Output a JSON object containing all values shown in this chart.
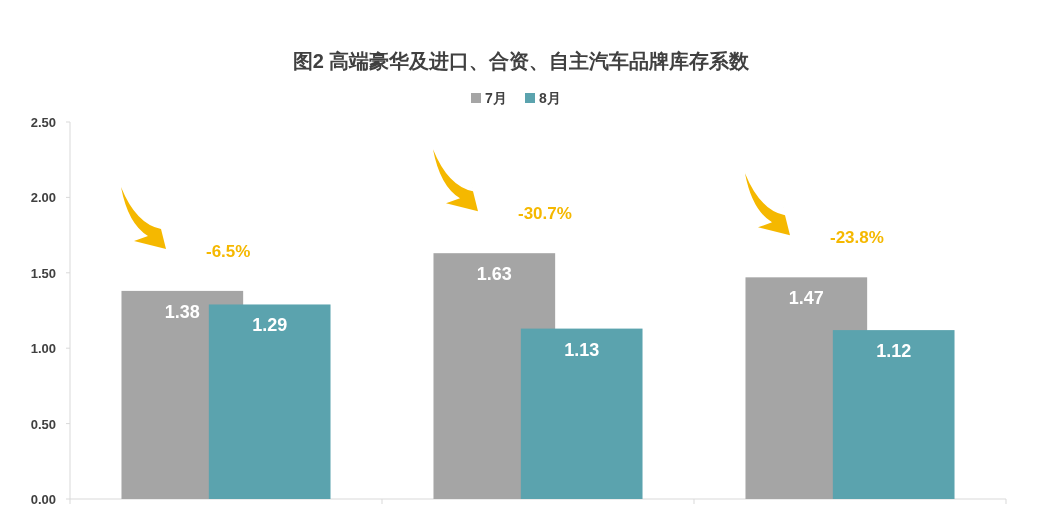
{
  "chart_data": {
    "type": "bar",
    "title": "图2  高端豪华及进口、合资、自主汽车品牌库存系数",
    "categories": [
      null,
      null,
      null
    ],
    "series": [
      {
        "name": "7月",
        "color": "#a5a5a5",
        "values": [
          1.38,
          1.63,
          1.47
        ]
      },
      {
        "name": "8月",
        "color": "#5ba3ae",
        "values": [
          1.29,
          1.13,
          1.12
        ]
      }
    ],
    "ylim": [
      0,
      2.5
    ],
    "yticks": [
      {
        "value": 0,
        "label": "0.00"
      },
      {
        "value": 0.5,
        "label": "0.50"
      },
      {
        "value": 1,
        "label": "1.00"
      },
      {
        "value": 1.5,
        "label": "1.50"
      },
      {
        "value": 2,
        "label": "2.00"
      },
      {
        "value": 2.5,
        "label": "2.50"
      }
    ],
    "data_labels": true,
    "legend": "top",
    "grid": false,
    "annotations": [
      "-6.5%",
      "-30.7%",
      "-23.8%"
    ]
  }
}
